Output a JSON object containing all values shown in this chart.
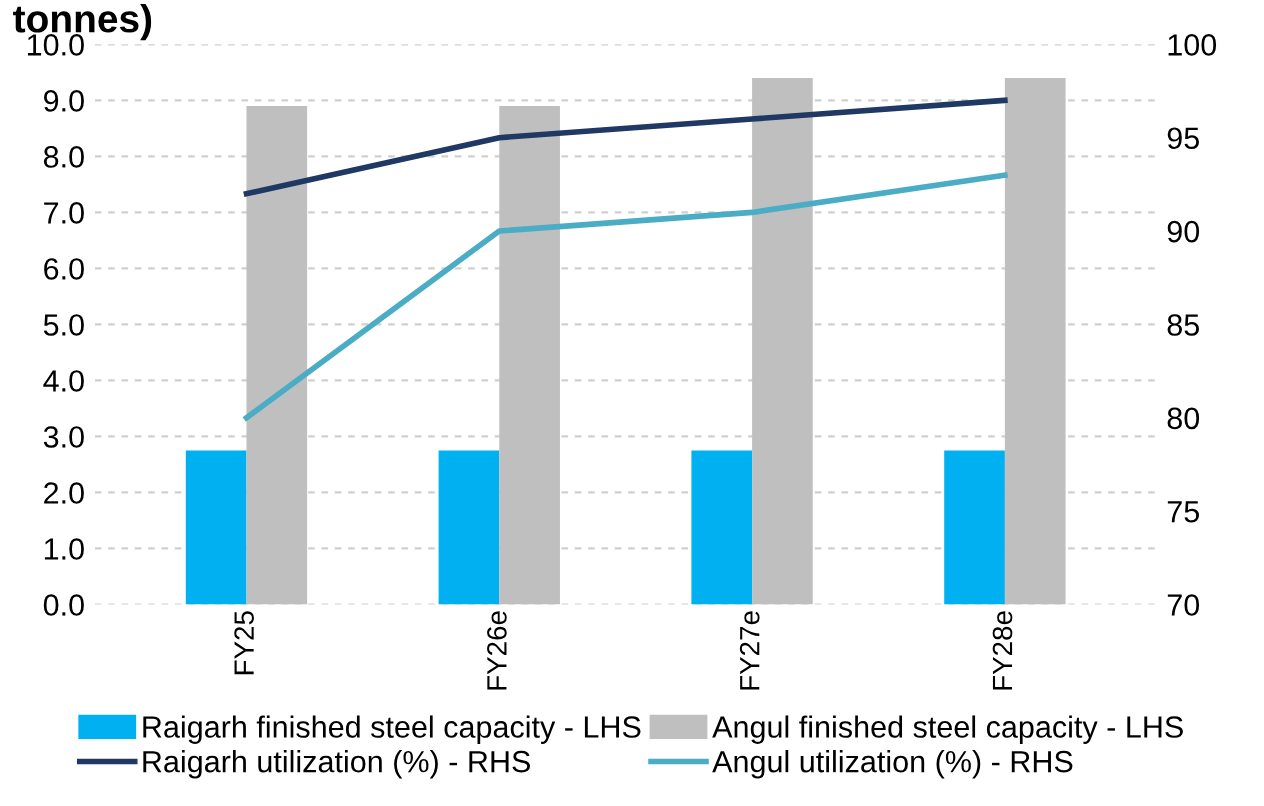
{
  "chart_data": {
    "type": "bar",
    "title": "tonnes)",
    "categories": [
      "FY25",
      "FY26e",
      "FY27e",
      "FY28e"
    ],
    "series": [
      {
        "name": "Raigarh finished steel capacity - LHS",
        "color": "#00b0f0",
        "values": [
          2.75,
          2.75,
          2.75,
          2.75
        ]
      },
      {
        "name": "Angul finished steel capacity - LHS",
        "color": "#bfbfbf",
        "values": [
          8.9,
          8.9,
          9.4,
          9.4
        ]
      },
      {
        "name": "Raigarh utilization (%) - RHS",
        "color": "#1f3864",
        "type": "line",
        "axis": "y2",
        "values": [
          92,
          95,
          96,
          97
        ]
      },
      {
        "name": "Angul utilization (%) - RHS",
        "color": "#4bacc6",
        "type": "line",
        "axis": "y2",
        "values": [
          80,
          90,
          91,
          93
        ]
      }
    ],
    "ylim": [
      0,
      10
    ],
    "yticks": [
      {
        "value": 0,
        "label": "0.0"
      },
      {
        "value": 1,
        "label": "1.0"
      },
      {
        "value": 2,
        "label": "2.0"
      },
      {
        "value": 3,
        "label": "3.0"
      },
      {
        "value": 4,
        "label": "4.0"
      },
      {
        "value": 5,
        "label": "5.0"
      },
      {
        "value": 6,
        "label": "6.0"
      },
      {
        "value": 7,
        "label": "7.0"
      },
      {
        "value": 8,
        "label": "8.0"
      },
      {
        "value": 9,
        "label": "9.0"
      },
      {
        "value": 10,
        "label": "10.0"
      }
    ],
    "y2lim": [
      70,
      100
    ],
    "y2ticks": [
      70,
      75,
      80,
      85,
      90,
      95,
      100
    ],
    "grid": "y",
    "legend": "bottom",
    "marker": "none",
    "line_style": "solid"
  }
}
